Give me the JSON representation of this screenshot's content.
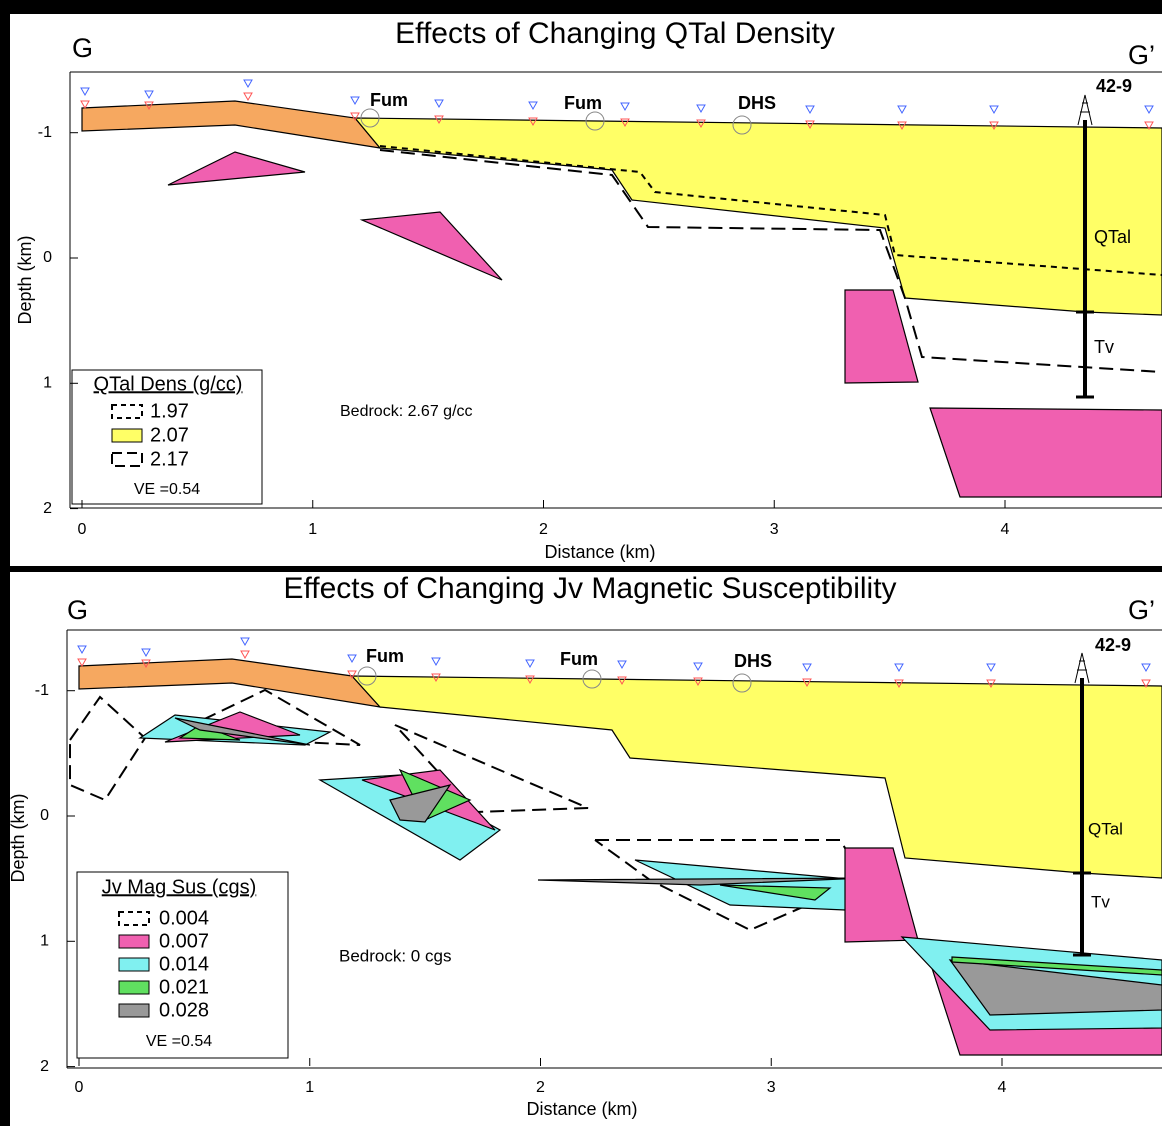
{
  "panels": [
    {
      "title": "Effects of Changing QTal Density",
      "left_label": "G",
      "right_label": "G’",
      "x_label": "Distance (km)",
      "y_label": "Depth (km)",
      "xticks": [
        0,
        1,
        2,
        3,
        4
      ],
      "yticks": [
        -1,
        0,
        1,
        2
      ],
      "annotations": {
        "fum_1": "Fum",
        "fum_2": "Fum",
        "dhs": "DHS",
        "well": "42-9",
        "qtal": "QTal",
        "tv": "Tv",
        "bedrock": "Bedrock: 2.67 g/cc"
      },
      "legend": {
        "title": "QTal Dens (g/cc)",
        "entries": [
          "1.97",
          "2.07",
          "2.17"
        ],
        "note": "VE =0.54"
      }
    },
    {
      "title": "Effects of Changing Jv Magnetic Susceptibility",
      "left_label": "G",
      "right_label": "G’",
      "x_label": "Distance (km)",
      "y_label": "Depth (km)",
      "xticks": [
        0,
        1,
        2,
        3,
        4
      ],
      "yticks": [
        -1,
        0,
        1,
        2
      ],
      "annotations": {
        "fum_1": "Fum",
        "fum_2": "Fum",
        "dhs": "DHS",
        "well": "42-9",
        "qtal": "QTal",
        "tv": "Tv",
        "bedrock": "Bedrock: 0 cgs"
      },
      "legend": {
        "title": "Jv Mag Sus (cgs)",
        "entries": [
          "0.004",
          "0.007",
          "0.014",
          "0.021",
          "0.028"
        ],
        "note": "VE =0.54"
      }
    }
  ]
}
